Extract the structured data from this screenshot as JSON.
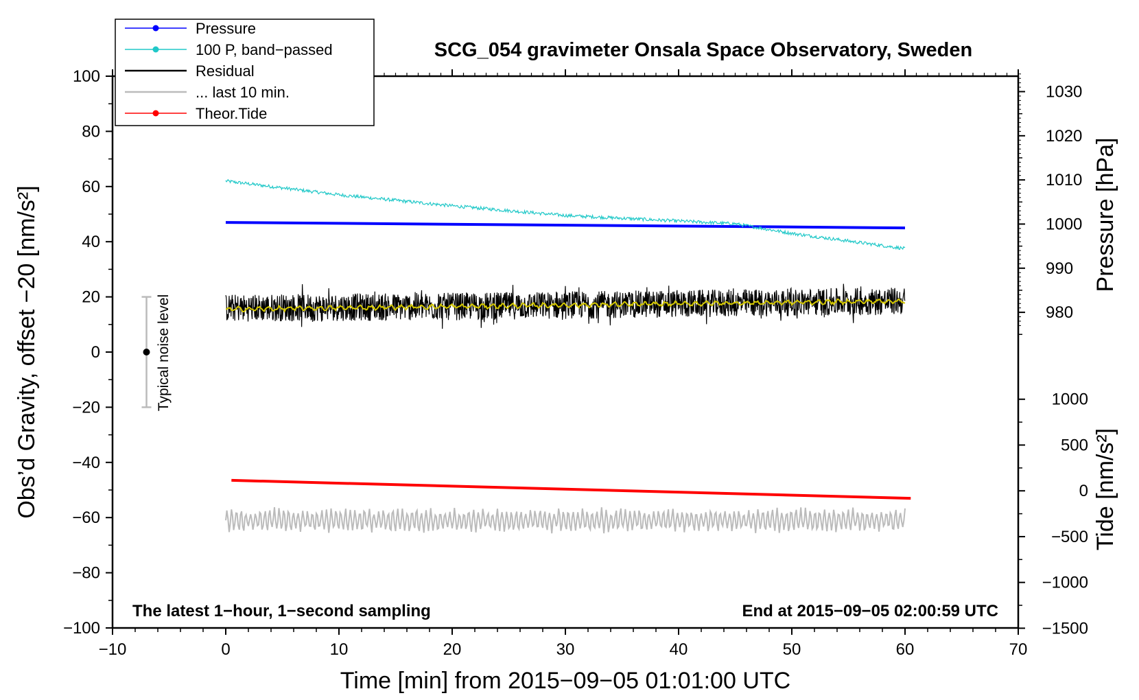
{
  "chart_data": {
    "type": "line",
    "title": "SCG_054 gravimeter Onsala Space Observatory, Sweden",
    "xlabel": "Time [min] from 2015−09−05 01:01:00 UTC",
    "ylabel_left": "Obs’d Gravity, offset −20 [nm/s²]",
    "ylabel_right_pressure": "Pressure [hPa]",
    "ylabel_right_tide": "Tide [nm/s²]",
    "xlim": [
      -10,
      70
    ],
    "ylim_left": [
      -100,
      100
    ],
    "xticks": [
      "−10",
      "0",
      "10",
      "20",
      "30",
      "40",
      "50",
      "60",
      "70"
    ],
    "yticks_left": [
      "100",
      "80",
      "60",
      "40",
      "20",
      "0",
      "−20",
      "−40",
      "−60",
      "−80",
      "−100"
    ],
    "yticks_pressure": [
      "1030",
      "1020",
      "1010",
      "1000",
      "990",
      "980"
    ],
    "yticks_tide": [
      "1000",
      "500",
      "0",
      "−500",
      "−1000",
      "−1500"
    ],
    "bottom_left_note": "The latest 1−hour, 1−second sampling",
    "bottom_right_note": "End at 2015−09−05 02:00:59 UTC",
    "noise_label": "Typical noise level",
    "noise_bar": {
      "x": -7,
      "center": 0,
      "low": -20,
      "high": 20
    },
    "legend": [
      {
        "label": "Pressure",
        "color": "#0000ff",
        "marker": true
      },
      {
        "label": "100 P, band−passed",
        "color": "#20c8c8",
        "marker": true
      },
      {
        "label": "Residual",
        "color": "#000000",
        "marker": false
      },
      {
        "label": "... last 10 min.",
        "color": "#bbbbbb",
        "marker": false
      },
      {
        "label": "Theor.Tide",
        "color": "#ff0000",
        "marker": true
      }
    ],
    "series": [
      {
        "name": "Pressure",
        "axis": "left",
        "color": "#0000ff",
        "x": [
          0,
          60
        ],
        "y": [
          47,
          45
        ]
      },
      {
        "name": "100 P, band−passed",
        "axis": "left",
        "color": "#20c8c8",
        "x": [
          0,
          10,
          20,
          30,
          40,
          45,
          50,
          60
        ],
        "y": [
          62,
          57,
          53,
          49.5,
          47.5,
          46.5,
          43,
          37.5
        ]
      },
      {
        "name": "Residual",
        "axis": "left",
        "color": "#000000",
        "x": [
          0,
          20,
          40,
          60
        ],
        "y": [
          16,
          16.5,
          17.5,
          18.5
        ],
        "noise_amplitude": 5
      },
      {
        "name": "Residual smoothed",
        "axis": "left",
        "color": "#d4c800",
        "x": [
          0,
          20,
          40,
          60
        ],
        "y": [
          15.5,
          16.5,
          17.5,
          18.5
        ]
      },
      {
        "name": "... last 10 min.",
        "axis": "left",
        "color": "#bbbbbb",
        "x": [
          0,
          60
        ],
        "y": [
          -61,
          -61
        ],
        "noise_amplitude": 4
      },
      {
        "name": "Theor.Tide",
        "axis": "left",
        "color": "#ff0000",
        "x": [
          0.5,
          60.5
        ],
        "y": [
          -46.5,
          -53
        ]
      }
    ]
  }
}
